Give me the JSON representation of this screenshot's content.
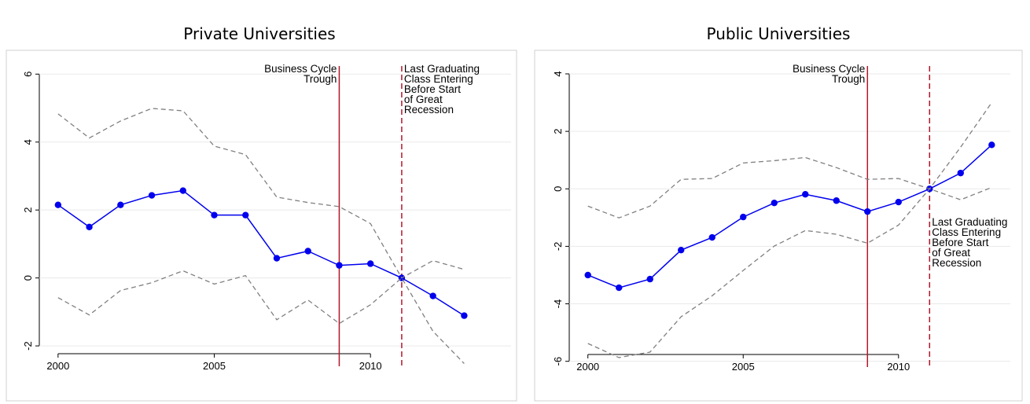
{
  "chart_data": [
    {
      "type": "line",
      "title": "Private Universities",
      "x": [
        2000,
        2001,
        2002,
        2003,
        2004,
        2005,
        2006,
        2007,
        2008,
        2009,
        2010,
        2011,
        2012,
        2013
      ],
      "series": [
        {
          "color": "#0000ee",
          "dash": false,
          "markers": true,
          "values": [
            2.15,
            1.5,
            2.15,
            2.43,
            2.57,
            1.85,
            1.85,
            0.58,
            0.79,
            0.37,
            0.42,
            0,
            -0.53,
            -1.11
          ]
        },
        {
          "color": "#808080",
          "dash": true,
          "markers": false,
          "values": [
            4.83,
            4.12,
            4.62,
            4.99,
            4.92,
            3.88,
            3.63,
            2.38,
            2.22,
            2.1,
            1.6,
            0,
            0.51,
            0.25
          ]
        },
        {
          "color": "#808080",
          "dash": true,
          "markers": false,
          "values": [
            -0.58,
            -1.09,
            -0.37,
            -0.14,
            0.21,
            -0.18,
            0.07,
            -1.23,
            -0.65,
            -1.34,
            -0.79,
            0,
            -1.57,
            -2.52
          ]
        }
      ],
      "vlines": [
        {
          "x": 2009,
          "dash": false,
          "color": "#b2182b",
          "label": [
            "Business Cycle",
            "Trough"
          ]
        },
        {
          "x": 2011,
          "dash": true,
          "color": "#b2182b",
          "label": [
            "Last Graduating",
            "Class Entering",
            "Before Start",
            "of Great",
            "Recession"
          ]
        }
      ],
      "xlim": [
        1999.4,
        2014.5
      ],
      "xticks": [
        2000,
        2005,
        2010
      ],
      "ylim": [
        -2.6,
        6.4
      ],
      "yticks": [
        -2,
        0,
        2,
        4,
        6
      ],
      "grid": true
    },
    {
      "type": "line",
      "title": "Public Universities",
      "x": [
        2000,
        2001,
        2002,
        2003,
        2004,
        2005,
        2006,
        2007,
        2008,
        2009,
        2010,
        2011,
        2012,
        2013
      ],
      "series": [
        {
          "color": "#0000ee",
          "dash": false,
          "markers": true,
          "values": [
            -3.0,
            -3.44,
            -3.14,
            -2.13,
            -1.69,
            -0.98,
            -0.49,
            -0.19,
            -0.41,
            -0.79,
            -0.46,
            0,
            0.55,
            1.53
          ]
        },
        {
          "color": "#808080",
          "dash": true,
          "markers": false,
          "values": [
            -0.6,
            -1.01,
            -0.6,
            0.33,
            0.36,
            0.9,
            0.98,
            1.09,
            0.74,
            0.33,
            0.36,
            0,
            -0.38,
            0.05
          ]
        },
        {
          "color": "#808080",
          "dash": true,
          "markers": false,
          "values": [
            -5.38,
            -5.87,
            -5.68,
            -4.45,
            -3.72,
            -2.84,
            -1.99,
            -1.45,
            -1.58,
            -1.89,
            -1.26,
            0,
            1.45,
            3.0
          ]
        }
      ],
      "vlines": [
        {
          "x": 2009,
          "dash": false,
          "color": "#b2182b",
          "label": [
            "Business Cycle",
            "Trough"
          ]
        },
        {
          "x": 2011,
          "dash": true,
          "color": "#b2182b",
          "label": [
            "Last Graduating",
            "Class Entering",
            "Before Start",
            "of Great",
            "Recession"
          ]
        }
      ],
      "xlim": [
        1999.4,
        2013.6
      ],
      "xticks": [
        2000,
        2005,
        2010
      ],
      "ylim": [
        -6.2,
        4.5
      ],
      "yticks": [
        -6,
        -4,
        -2,
        0,
        2,
        4
      ],
      "grid": true
    }
  ]
}
